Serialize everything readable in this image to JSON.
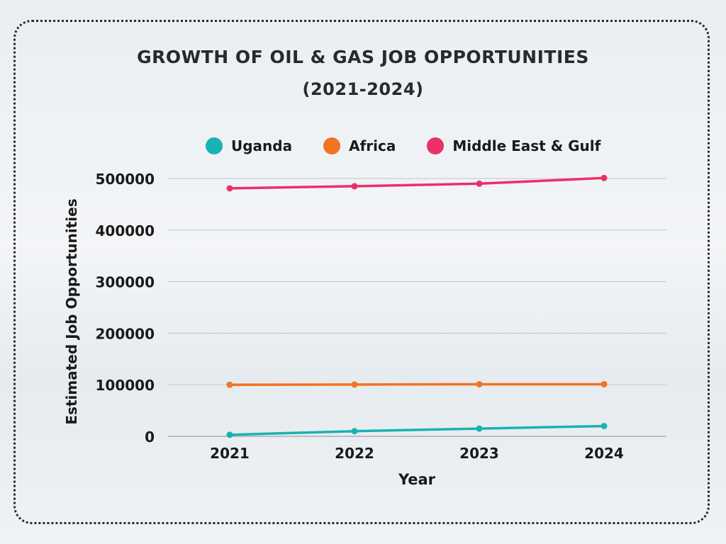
{
  "chart_data": {
    "type": "line",
    "title_line1": "GROWTH OF OIL & GAS JOB OPPORTUNITIES",
    "title_line2": "(2021-2024)",
    "xlabel": "Year",
    "ylabel": "Estimated Job Opportunities",
    "categories": [
      "2021",
      "2022",
      "2023",
      "2024"
    ],
    "ylim": [
      0,
      500000
    ],
    "yticks": [
      0,
      100000,
      200000,
      300000,
      400000,
      500000
    ],
    "grid": true,
    "legend_position": "top",
    "series": [
      {
        "name": "Uganda",
        "color": "#1ab2b2",
        "values": [
          3000,
          10000,
          15000,
          20000
        ]
      },
      {
        "name": "Africa",
        "color": "#f27320",
        "values": [
          100000,
          100500,
          101000,
          101000
        ]
      },
      {
        "name": "Middle East & Gulf",
        "color": "#ea3068",
        "values": [
          481000,
          485000,
          490000,
          501000
        ]
      }
    ]
  }
}
